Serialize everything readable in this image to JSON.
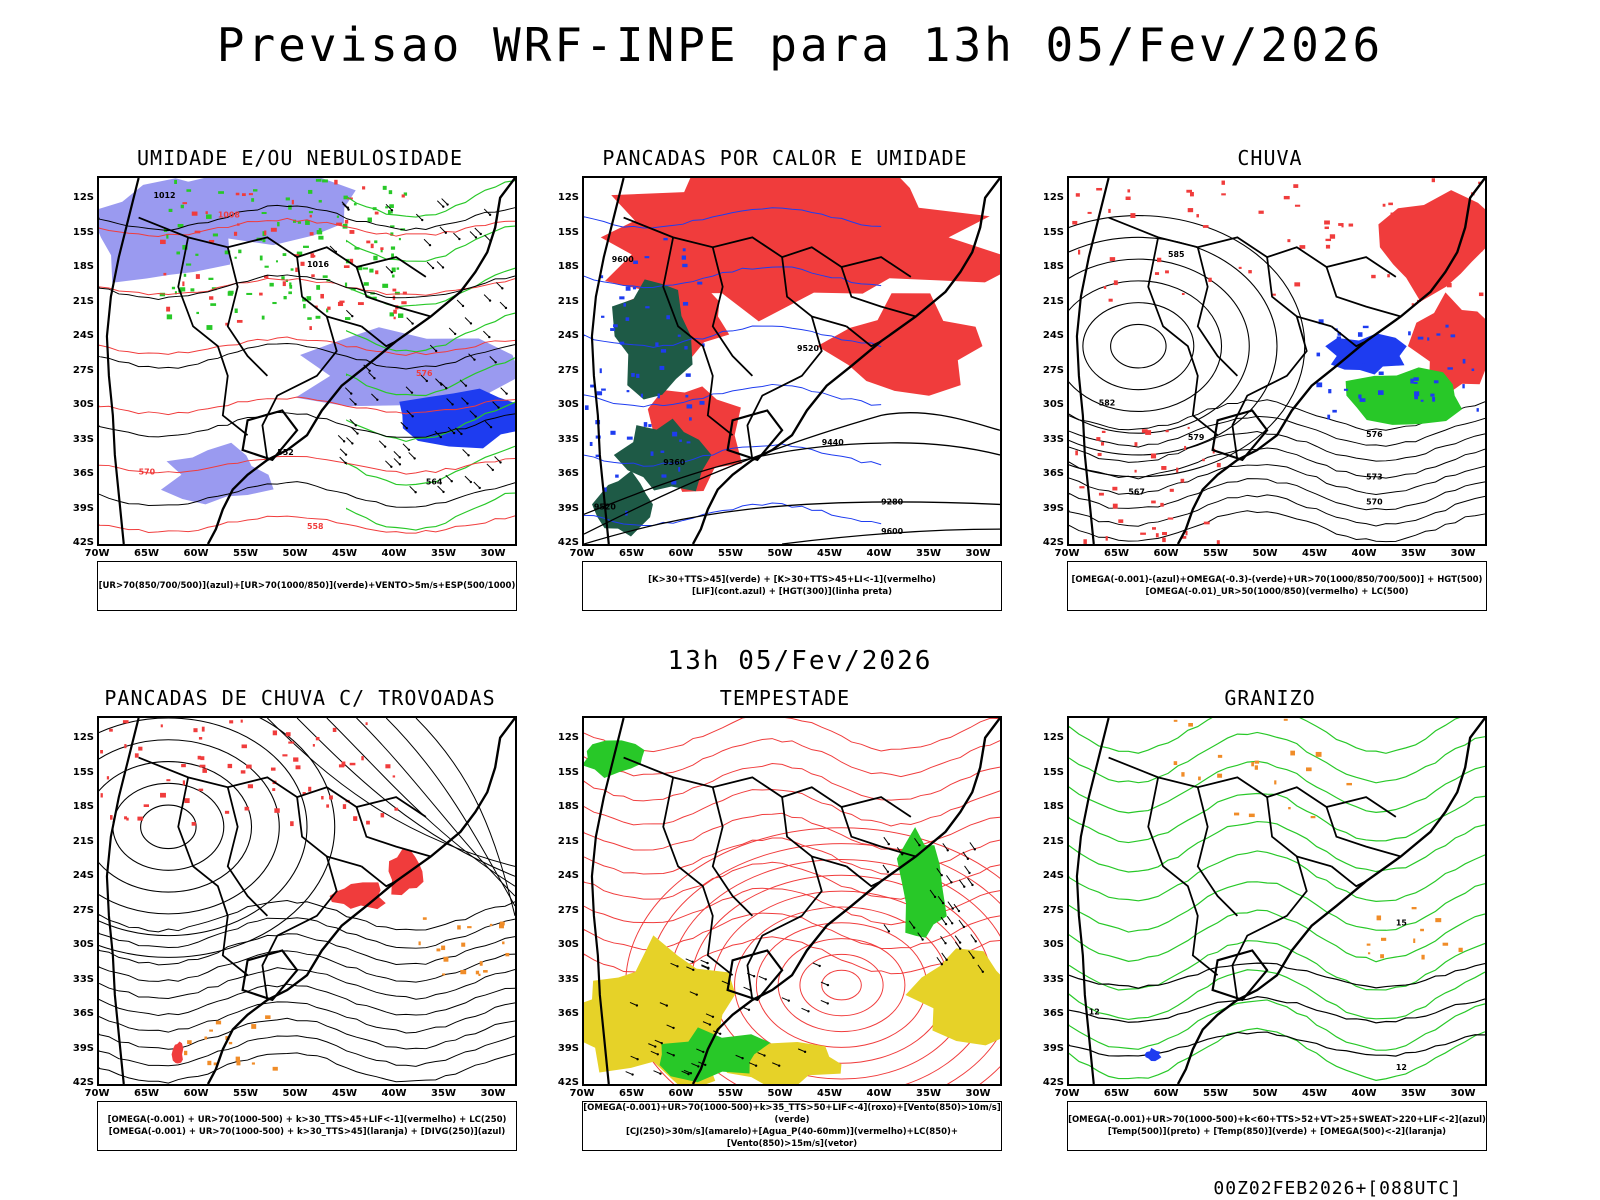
{
  "main_title": "Previsao WRF-INPE  para 13h 05/Fev/2026",
  "mid_title": "13h 05/Fev/2026",
  "footer": "00Z02FEB2026+[088UTC]",
  "axes": {
    "lat": [
      "12S",
      "15S",
      "18S",
      "21S",
      "24S",
      "27S",
      "30S",
      "33S",
      "36S",
      "39S",
      "42S"
    ],
    "lon": [
      "70W",
      "65W",
      "60W",
      "55W",
      "50W",
      "45W",
      "40W",
      "35W",
      "30W"
    ]
  },
  "colors": {
    "red": "#f03c3c",
    "green": "#28c828",
    "blue": "#1e3cf0",
    "lavender": "#9a9af0",
    "yellow": "#e6d228",
    "darkgreen": "#1e5a46",
    "orange": "#f08c28"
  },
  "panels": [
    {
      "title": "UMIDADE E/OU NEBULOSIDADE",
      "legend": [
        "[UR>70(850/700/500)](azul)+[UR>70(1000/850)](verde)+VENTO>5m/s+ESP(500/1000)"
      ],
      "labels": [
        "1012",
        "1008",
        "1016",
        "576",
        "552",
        "570",
        "564",
        "558"
      ]
    },
    {
      "title": "PANCADAS POR CALOR E UMIDADE",
      "legend": [
        "[K>30+TTS>45](verde)  +  [K>30+TTS>45+LI<-1](vermelho)",
        "[LIF](cont.azul)  +  [HGT(300)](linha preta)"
      ],
      "labels": [
        "9600",
        "9520",
        "9440",
        "9360",
        "9280"
      ]
    },
    {
      "title": "CHUVA",
      "legend": [
        "[OMEGA(-0.001)-(azul)+OMEGA(-0.3)-(verde)+UR>70(1000/850/700/500)]  +  HGT(500)",
        "[OMEGA(-0.01)_UR>50(1000/850)(vermelho) + LC(500)"
      ],
      "labels": [
        "585",
        "582",
        "579",
        "576",
        "573",
        "570",
        "567"
      ]
    },
    {
      "title": "PANCADAS DE CHUVA C/ TROVOADAS",
      "legend": [
        "[OMEGA(-0.001) + UR>70(1000-500) + k>30_TTS>45+LIF<-1](vermelho) + LC(250)",
        "[OMEGA(-0.001) + UR>70(1000-500) + k>30_TTS>45](laranja) + [DIVG(250)](azul)"
      ],
      "labels": []
    },
    {
      "title": "TEMPESTADE",
      "legend": [
        "[OMEGA(-0.001)+UR>70(1000-500)+k>35_TTS>50+LIF<-4](roxo)+[Vento(850)>10m/s](verde)",
        "[CJ(250)>30m/s](amarelo)+[Agua_P(40-60mm)](vermelho)+LC(850)+[Vento(850)>15m/s](vetor)"
      ],
      "labels": []
    },
    {
      "title": "GRANIZO",
      "legend": [
        "[OMEGA(-0.001)+UR>70(1000-500)+k<60+TTS>52+VT>25+SWEAT>220+LIF<-2](azul)",
        "[Temp(500)](preto) + [Temp(850)](verde) + [OMEGA(500)<-2](laranja)"
      ],
      "labels": [
        "12",
        "15",
        "12"
      ]
    }
  ]
}
